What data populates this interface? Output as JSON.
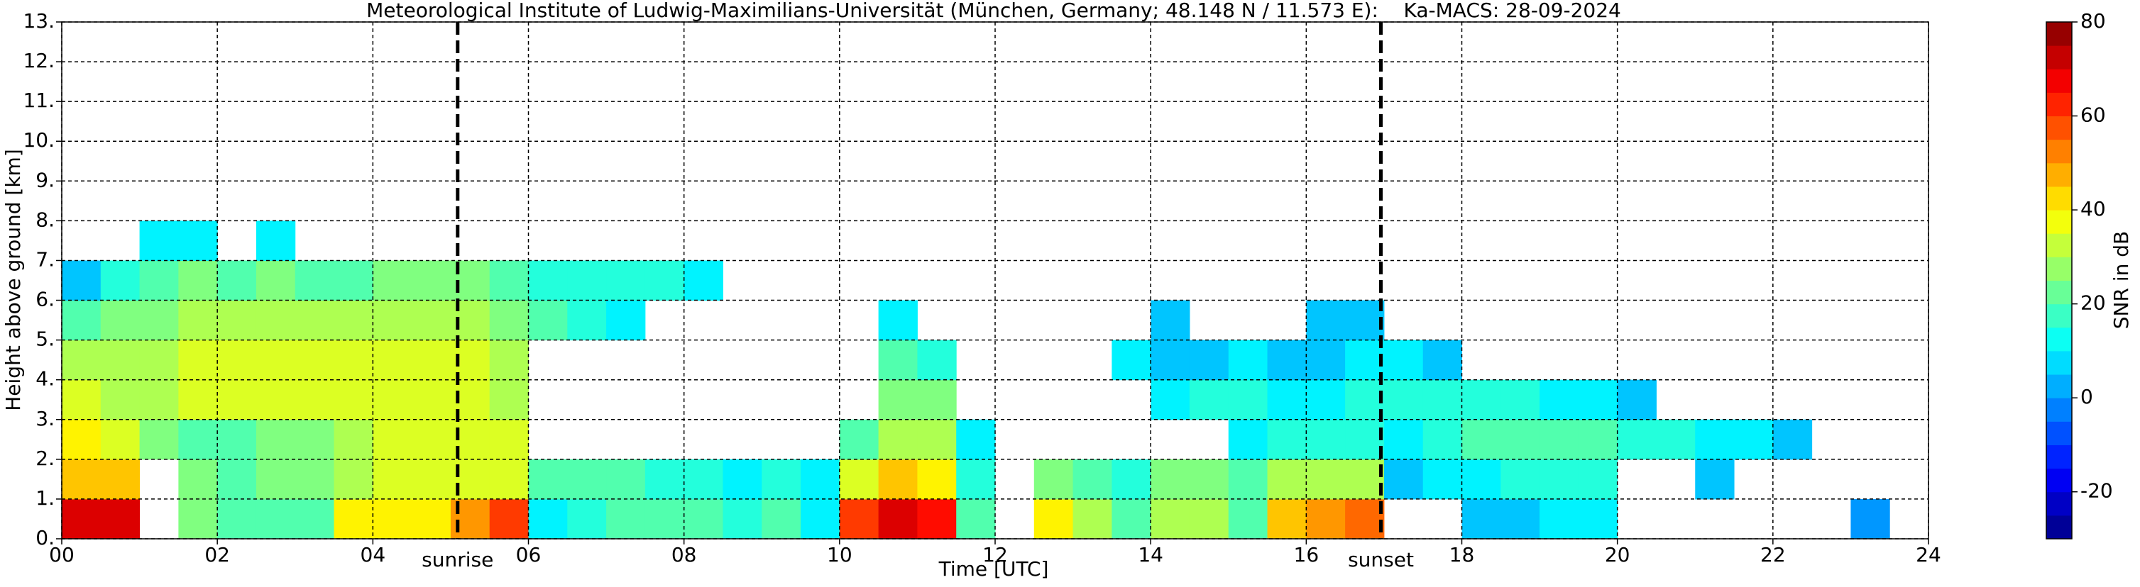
{
  "chart_data": {
    "type": "heatmap",
    "title": "Meteorological Institute of Ludwig-Maximilians-Universität (München, Germany; 48.148 N / 11.573 E):    Ka-MACS: 28-09-2024",
    "xlabel": "Time [UTC]",
    "ylabel": "Height above ground [km]",
    "colorbar_label": "SNR in dB",
    "colormap": "jet",
    "xlim": [
      0,
      24
    ],
    "ylim": [
      0,
      13
    ],
    "vlim": [
      -30,
      80
    ],
    "xticks": [
      {
        "value": 0,
        "label": "00"
      },
      {
        "value": 2,
        "label": "02"
      },
      {
        "value": 4,
        "label": "04"
      },
      {
        "value": 6,
        "label": "06"
      },
      {
        "value": 8,
        "label": "08"
      },
      {
        "value": 10,
        "label": "10"
      },
      {
        "value": 12,
        "label": "12"
      },
      {
        "value": 14,
        "label": "14"
      },
      {
        "value": 16,
        "label": "16"
      },
      {
        "value": 18,
        "label": "18"
      },
      {
        "value": 20,
        "label": "20"
      },
      {
        "value": 22,
        "label": "22"
      },
      {
        "value": 24,
        "label": "24"
      }
    ],
    "yticks": [
      {
        "value": 0,
        "label": "0."
      },
      {
        "value": 1,
        "label": "1."
      },
      {
        "value": 2,
        "label": "2."
      },
      {
        "value": 3,
        "label": "3."
      },
      {
        "value": 4,
        "label": "4."
      },
      {
        "value": 5,
        "label": "5."
      },
      {
        "value": 6,
        "label": "6."
      },
      {
        "value": 7,
        "label": "7."
      },
      {
        "value": 8,
        "label": "8."
      },
      {
        "value": 9,
        "label": "9."
      },
      {
        "value": 10,
        "label": "10."
      },
      {
        "value": 11,
        "label": "11."
      },
      {
        "value": 12,
        "label": "12."
      },
      {
        "value": 13,
        "label": "13."
      }
    ],
    "vticks": [
      -20,
      0,
      20,
      40,
      60,
      80
    ],
    "grid": true,
    "annotations": [
      {
        "text": "sunrise",
        "x": 5.09
      },
      {
        "text": "sunset",
        "x": 16.96
      }
    ],
    "xbins": [
      0,
      0.5,
      1,
      1.5,
      2,
      2.5,
      3,
      3.5,
      4,
      4.5,
      5,
      5.5,
      6,
      6.5,
      7,
      7.5,
      8,
      8.5,
      9,
      9.5,
      10,
      10.5,
      11,
      11.5,
      12,
      12.5,
      13,
      13.5,
      14,
      14.5,
      15,
      15.5,
      16,
      16.5,
      17,
      17.5,
      18,
      18.5,
      19,
      19.5,
      20,
      20.5,
      21,
      21.5,
      22,
      22.5,
      23,
      23.5,
      24
    ],
    "ybins": [
      0,
      1,
      2,
      3,
      4,
      5,
      6,
      7,
      8
    ],
    "z": [
      [
        70,
        45,
        40,
        35,
        30,
        20,
        5,
        null
      ],
      [
        70,
        45,
        35,
        30,
        30,
        25,
        15,
        null
      ],
      [
        null,
        null,
        25,
        30,
        30,
        25,
        20,
        10
      ],
      [
        25,
        25,
        20,
        35,
        35,
        30,
        25,
        10
      ],
      [
        20,
        20,
        20,
        35,
        35,
        30,
        20,
        null
      ],
      [
        20,
        25,
        25,
        35,
        35,
        30,
        25,
        10
      ],
      [
        20,
        25,
        25,
        35,
        35,
        30,
        20,
        null
      ],
      [
        40,
        30,
        30,
        35,
        35,
        30,
        20,
        null
      ],
      [
        40,
        35,
        35,
        35,
        35,
        30,
        25,
        null
      ],
      [
        40,
        35,
        35,
        35,
        35,
        30,
        25,
        null
      ],
      [
        50,
        35,
        35,
        35,
        35,
        30,
        25,
        null
      ],
      [
        60,
        35,
        35,
        30,
        30,
        25,
        20,
        null
      ],
      [
        10,
        20,
        null,
        null,
        null,
        20,
        15,
        null
      ],
      [
        15,
        20,
        null,
        null,
        null,
        15,
        15,
        null
      ],
      [
        20,
        20,
        null,
        null,
        null,
        10,
        15,
        null
      ],
      [
        20,
        15,
        null,
        null,
        null,
        null,
        15,
        null
      ],
      [
        20,
        15,
        null,
        null,
        null,
        null,
        10,
        null
      ],
      [
        15,
        10,
        null,
        null,
        null,
        null,
        null,
        null
      ],
      [
        20,
        15,
        null,
        null,
        null,
        null,
        null,
        null
      ],
      [
        10,
        10,
        null,
        null,
        null,
        null,
        null,
        null
      ],
      [
        60,
        35,
        20,
        null,
        null,
        null,
        null,
        null
      ],
      [
        70,
        45,
        30,
        25,
        20,
        10,
        null,
        null
      ],
      [
        65,
        40,
        30,
        25,
        15,
        null,
        null,
        null
      ],
      [
        20,
        15,
        10,
        null,
        null,
        null,
        null,
        null
      ],
      [
        null,
        null,
        null,
        null,
        null,
        null,
        null,
        null
      ],
      [
        40,
        25,
        null,
        null,
        null,
        null,
        null,
        null
      ],
      [
        30,
        20,
        null,
        null,
        null,
        null,
        null,
        null
      ],
      [
        20,
        15,
        null,
        null,
        10,
        null,
        null,
        null
      ],
      [
        30,
        25,
        null,
        10,
        5,
        5,
        null,
        null
      ],
      [
        30,
        25,
        null,
        15,
        5,
        null,
        null,
        null
      ],
      [
        20,
        20,
        10,
        15,
        10,
        null,
        null,
        null
      ],
      [
        45,
        30,
        15,
        10,
        5,
        null,
        null,
        null
      ],
      [
        50,
        30,
        15,
        10,
        5,
        5,
        null,
        null
      ],
      [
        55,
        30,
        15,
        15,
        10,
        5,
        null,
        null
      ],
      [
        null,
        5,
        10,
        15,
        10,
        null,
        null,
        null
      ],
      [
        null,
        10,
        15,
        15,
        5,
        null,
        null,
        null
      ],
      [
        5,
        10,
        20,
        15,
        null,
        null,
        null,
        null
      ],
      [
        5,
        15,
        20,
        15,
        null,
        null,
        null,
        null
      ],
      [
        10,
        15,
        20,
        10,
        null,
        null,
        null,
        null
      ],
      [
        10,
        15,
        20,
        10,
        null,
        null,
        null,
        null
      ],
      [
        null,
        null,
        15,
        5,
        null,
        null,
        null,
        null
      ],
      [
        null,
        null,
        15,
        null,
        null,
        null,
        null,
        null
      ],
      [
        null,
        5,
        10,
        null,
        null,
        null,
        null,
        null
      ],
      [
        null,
        null,
        10,
        null,
        null,
        null,
        null,
        null
      ],
      [
        null,
        null,
        5,
        null,
        null,
        null,
        null,
        null
      ],
      [
        null,
        null,
        null,
        null,
        null,
        null,
        null,
        null
      ],
      [
        0,
        null,
        null,
        null,
        null,
        null,
        null,
        null
      ],
      [
        null,
        null,
        null,
        null,
        null,
        null,
        null,
        null
      ]
    ]
  }
}
